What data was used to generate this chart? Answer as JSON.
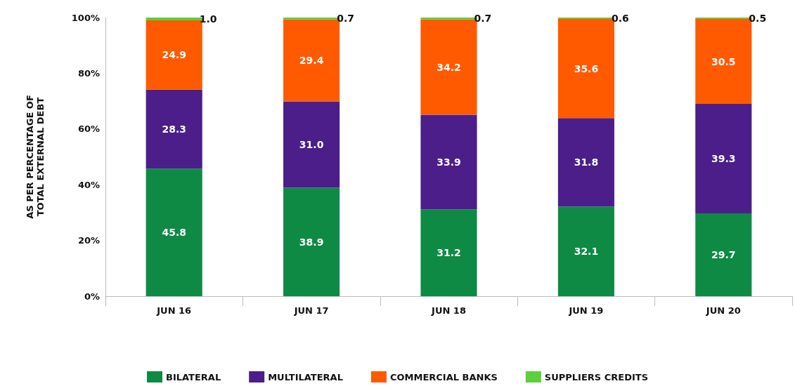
{
  "chart_data": {
    "type": "bar",
    "stacked": true,
    "ylabel": "AS PER PERCENTAGE OF TOTAL EXTERNAL DEBT",
    "categories": [
      "JUN 16",
      "JUN 17",
      "JUN 18",
      "JUN 19",
      "JUN 20"
    ],
    "series": [
      {
        "name": "BILATERAL",
        "color": "#0f8a45",
        "values": [
          45.8,
          38.9,
          31.2,
          32.1,
          29.7
        ],
        "value_labels": [
          "45.8",
          "38.9",
          "31.2",
          "32.1",
          "29.7"
        ]
      },
      {
        "name": "MULTILATERAL",
        "color": "#4b1e8a",
        "values": [
          28.3,
          31.0,
          33.9,
          31.8,
          39.3
        ],
        "value_labels": [
          "28.3",
          "31.0",
          "33.9",
          "31.8",
          "39.3"
        ]
      },
      {
        "name": "COMMERCIAL BANKS",
        "color": "#ff5a00",
        "values": [
          24.9,
          29.4,
          34.2,
          35.6,
          30.5
        ],
        "value_labels": [
          "24.9",
          "29.4",
          "34.2",
          "35.6",
          "30.5"
        ]
      },
      {
        "name": "SUPPLIERS CREDITS",
        "color": "#5ccf3a",
        "values": [
          1.0,
          0.7,
          0.7,
          0.6,
          0.5
        ],
        "value_labels": [
          "1.0",
          "0.7",
          "0.7",
          "0.6",
          "0.5"
        ]
      }
    ],
    "ylim": [
      0,
      100
    ],
    "yticks": [
      {
        "value": 0,
        "label": "0%"
      },
      {
        "value": 20,
        "label": "20%"
      },
      {
        "value": 40,
        "label": "40%"
      },
      {
        "value": 60,
        "label": "60%"
      },
      {
        "value": 80,
        "label": "80%"
      },
      {
        "value": 100,
        "label": "100%"
      }
    ],
    "legend": "bottom",
    "grid": false
  }
}
